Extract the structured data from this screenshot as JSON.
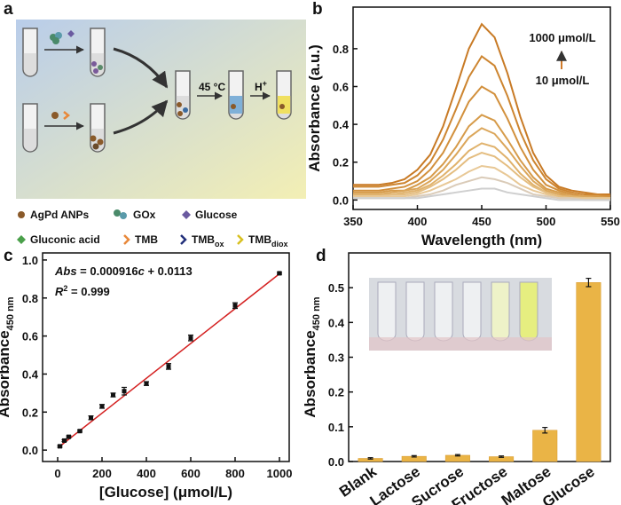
{
  "diagram": {
    "panel_label": "a",
    "temperature": "45 °C",
    "acid": {
      "main": "H",
      "sup": "+"
    },
    "legend": [
      {
        "text": "AgPd ANPs"
      },
      {
        "text": "GOx"
      },
      {
        "text": "Glucose"
      },
      {
        "text": "Gluconic acid"
      },
      {
        "text": "TMB"
      },
      {
        "main": "TMB",
        "sub": "ox"
      },
      {
        "main": "TMB",
        "sub": "diox"
      }
    ]
  },
  "chart_data": [
    {
      "type": "line",
      "panel_label": "b",
      "x_label": "Wavelength (nm)",
      "y_label": "Absorbance (a.u.)",
      "x": [
        350,
        360,
        370,
        380,
        390,
        400,
        410,
        420,
        430,
        440,
        450,
        460,
        470,
        480,
        490,
        500,
        510,
        520,
        530,
        540,
        550
      ],
      "xlim": [
        350,
        550
      ],
      "xticks": [
        350,
        400,
        450,
        500,
        550
      ],
      "ylim": [
        -0.05,
        1.02
      ],
      "yticks": [
        {
          "value": 0,
          "label": "0.0"
        },
        0.2,
        0.4,
        0.6,
        0.8
      ],
      "annotations": [
        {
          "text": "1000 μmol/L",
          "color": "#d07a2a"
        },
        {
          "text": "10 μmol/L",
          "color": "#efc27a"
        }
      ],
      "series": [
        {
          "color": "#c87a25",
          "values": [
            0.08,
            0.08,
            0.08,
            0.09,
            0.11,
            0.16,
            0.24,
            0.39,
            0.59,
            0.8,
            0.93,
            0.86,
            0.67,
            0.44,
            0.25,
            0.13,
            0.07,
            0.05,
            0.04,
            0.03,
            0.03
          ]
        },
        {
          "color": "#cd8530",
          "values": [
            0.07,
            0.07,
            0.07,
            0.08,
            0.09,
            0.13,
            0.2,
            0.32,
            0.48,
            0.65,
            0.76,
            0.71,
            0.55,
            0.36,
            0.21,
            0.11,
            0.06,
            0.04,
            0.03,
            0.03,
            0.02
          ]
        },
        {
          "color": "#d2903c",
          "values": [
            0.05,
            0.05,
            0.05,
            0.06,
            0.07,
            0.1,
            0.16,
            0.25,
            0.38,
            0.52,
            0.6,
            0.56,
            0.43,
            0.28,
            0.16,
            0.08,
            0.05,
            0.03,
            0.02,
            0.02,
            0.02
          ]
        },
        {
          "color": "#d69b4a",
          "values": [
            0.04,
            0.04,
            0.04,
            0.05,
            0.05,
            0.08,
            0.12,
            0.19,
            0.28,
            0.39,
            0.45,
            0.42,
            0.32,
            0.21,
            0.12,
            0.06,
            0.04,
            0.02,
            0.02,
            0.02,
            0.01
          ]
        },
        {
          "color": "#dba65a",
          "values": [
            0.03,
            0.03,
            0.03,
            0.04,
            0.05,
            0.06,
            0.1,
            0.16,
            0.24,
            0.33,
            0.38,
            0.35,
            0.27,
            0.18,
            0.1,
            0.05,
            0.03,
            0.02,
            0.02,
            0.01,
            0.01
          ]
        },
        {
          "color": "#e0b26c",
          "values": [
            0.03,
            0.03,
            0.03,
            0.03,
            0.04,
            0.05,
            0.08,
            0.13,
            0.19,
            0.26,
            0.3,
            0.28,
            0.22,
            0.14,
            0.08,
            0.04,
            0.02,
            0.02,
            0.01,
            0.01,
            0.01
          ]
        },
        {
          "color": "#e4bd80",
          "values": [
            0.02,
            0.02,
            0.02,
            0.03,
            0.03,
            0.04,
            0.07,
            0.11,
            0.16,
            0.22,
            0.25,
            0.23,
            0.18,
            0.12,
            0.07,
            0.04,
            0.02,
            0.01,
            0.01,
            0.01,
            0.01
          ]
        },
        {
          "color": "#e8c896",
          "values": [
            0.02,
            0.02,
            0.02,
            0.02,
            0.02,
            0.03,
            0.05,
            0.08,
            0.11,
            0.15,
            0.18,
            0.17,
            0.13,
            0.08,
            0.05,
            0.03,
            0.01,
            0.01,
            0.01,
            0.01,
            0.01
          ]
        },
        {
          "color": "#dacbb8",
          "values": [
            0.01,
            0.01,
            0.01,
            0.01,
            0.01,
            0.02,
            0.03,
            0.05,
            0.08,
            0.1,
            0.12,
            0.11,
            0.09,
            0.06,
            0.03,
            0.02,
            0.01,
            0.01,
            0.0,
            0.0,
            0.0
          ]
        },
        {
          "color": "#cfcfcf",
          "values": [
            0.01,
            0.01,
            0.01,
            0.01,
            0.01,
            0.01,
            0.02,
            0.03,
            0.04,
            0.05,
            0.06,
            0.06,
            0.04,
            0.03,
            0.02,
            0.01,
            0.0,
            0.0,
            0.0,
            0.0,
            0.0
          ]
        }
      ]
    },
    {
      "type": "scatter",
      "panel_label": "c",
      "x_label": "[Glucose] (μmol/L)",
      "y_label": {
        "text": "Absorbance",
        "sub": "450 nm"
      },
      "x": [
        10,
        30,
        50,
        100,
        150,
        200,
        250,
        300,
        400,
        500,
        600,
        800,
        1000
      ],
      "values": [
        0.02,
        0.05,
        0.07,
        0.1,
        0.17,
        0.23,
        0.29,
        0.31,
        0.35,
        0.44,
        0.59,
        0.76,
        0.93
      ],
      "errors": [
        0.005,
        0.005,
        0.005,
        0.005,
        0.01,
        0.01,
        0.01,
        0.02,
        0.01,
        0.015,
        0.015,
        0.015,
        0.005
      ],
      "color": "#111111",
      "fit": {
        "x": [
          0,
          1000
        ],
        "y": [
          0.0113,
          0.9273
        ],
        "color": "#d42020"
      },
      "equation": [
        "Abs",
        " = 0.000916",
        "c",
        " + 0.0113"
      ],
      "r2": [
        "R",
        "2",
        " = 0.999"
      ],
      "xlim": [
        -68,
        1044
      ],
      "xticks": [
        0,
        200,
        400,
        600,
        800,
        1000
      ],
      "ylim": [
        -0.06,
        1.037
      ],
      "yticks": [
        {
          "value": 0,
          "label": "0.0"
        },
        0.2,
        0.4,
        0.6,
        0.8,
        {
          "value": 1,
          "label": "1.0"
        }
      ]
    },
    {
      "type": "bar",
      "panel_label": "d",
      "y_label": {
        "text": "Absorbance",
        "sub": "450 nm"
      },
      "categories": [
        "Blank",
        "Lactose",
        "Sucrose",
        "Fructose",
        "Maltose",
        "Glucose"
      ],
      "values": [
        0.009,
        0.015,
        0.018,
        0.014,
        0.09,
        0.515
      ],
      "errors": [
        0.002,
        0.002,
        0.002,
        0.002,
        0.008,
        0.012
      ],
      "color": "#eab446",
      "ylim": [
        0,
        0.6
      ],
      "yticks": [
        {
          "value": 0,
          "label": "0.0"
        },
        0.1,
        0.2,
        0.3,
        0.4,
        0.5
      ]
    }
  ]
}
